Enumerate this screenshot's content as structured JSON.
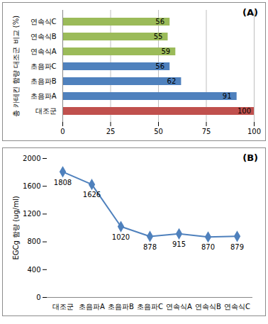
{
  "chart_data": [
    {
      "type": "bar",
      "orientation": "horizontal",
      "annotation": "(A)",
      "ylabel": "총 카테킨 함량 대조군 비교 (%)",
      "categories": [
        "연속식C",
        "연속식B",
        "연속식A",
        "초음파C",
        "초음파B",
        "초음파A",
        "대조군"
      ],
      "values": [
        56,
        55,
        59,
        56,
        62,
        91,
        100
      ],
      "colors": [
        "#9bbb59",
        "#9bbb59",
        "#9bbb59",
        "#4f81bd",
        "#4f81bd",
        "#4f81bd",
        "#c0504d"
      ],
      "xlim": [
        0,
        100
      ],
      "xticks": [
        0,
        25,
        50,
        75,
        100
      ],
      "grid": true,
      "data_labels": true
    },
    {
      "type": "line",
      "annotation": "(B)",
      "ylabel": "EGCg 함량 (ug/ml)",
      "categories": [
        "대조군",
        "초음파A",
        "초음파B",
        "초음파C",
        "연속식A",
        "연속식B",
        "연속식C"
      ],
      "values": [
        1808,
        1626,
        1020,
        878,
        915,
        870,
        879
      ],
      "color": "#4f81bd",
      "marker": "diamond",
      "line_style": "solid",
      "ylim": [
        0,
        2000
      ],
      "yticks": [
        0,
        400,
        800,
        1200,
        1600,
        2000
      ],
      "grid": false,
      "data_labels": true
    }
  ]
}
